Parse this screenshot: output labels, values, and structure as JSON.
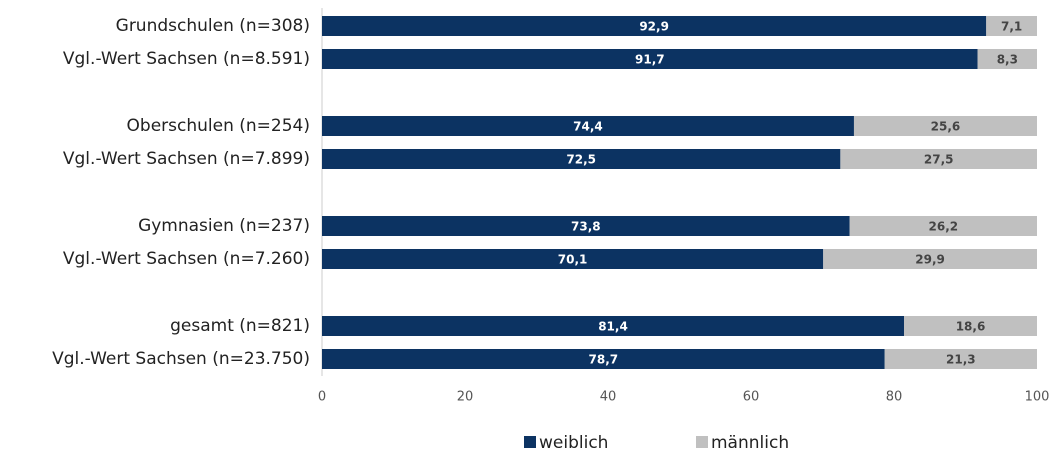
{
  "chart_data": {
    "type": "bar",
    "stacked": true,
    "orientation": "horizontal",
    "categories": [
      "Grundschulen (n=308)",
      "Vgl.-Wert Sachsen (n=8.591)",
      "Oberschulen (n=254)",
      "Vgl.-Wert Sachsen (n=7.899)",
      "Gymnasien (n=237)",
      "Vgl.-Wert Sachsen (n=7.260)",
      "gesamt (n=821)",
      "Vgl.-Wert Sachsen (n=23.750)"
    ],
    "series": [
      {
        "name": "weiblich",
        "color": "#0c3362",
        "values": [
          92.9,
          91.7,
          74.4,
          72.5,
          73.8,
          70.1,
          81.4,
          78.7
        ],
        "value_labels": [
          "92,9",
          "91,7",
          "74,4",
          "72,5",
          "73,8",
          "70,1",
          "81,4",
          "78,7"
        ]
      },
      {
        "name": "männlich",
        "color": "#c0c0c0",
        "values": [
          7.1,
          8.3,
          25.6,
          27.5,
          26.2,
          29.9,
          18.6,
          21.3
        ],
        "value_labels": [
          "7,1",
          "8,3",
          "25,6",
          "27,5",
          "26,2",
          "29,9",
          "18,6",
          "21,3"
        ]
      }
    ],
    "xlim": [
      0,
      100
    ],
    "xticks": [
      0,
      20,
      40,
      60,
      80,
      100
    ],
    "legend": "bottom"
  }
}
